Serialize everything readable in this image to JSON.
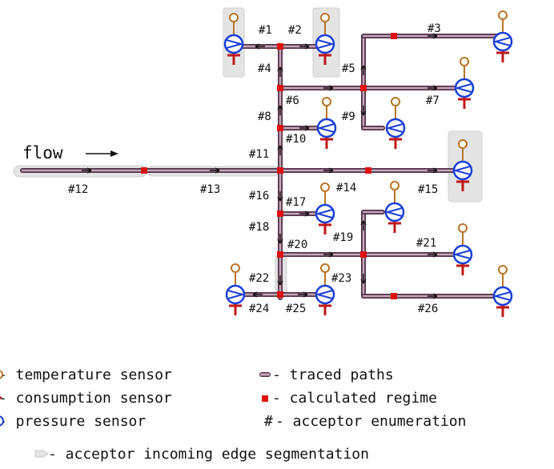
{
  "flow_label": "flow",
  "colors": {
    "pipe": "#a07a90",
    "pipe_core": "#c4a8b8",
    "pipe_edge": "#55304a",
    "regime": "#e01010",
    "pump": "#1a3fd8",
    "temp_sensor": "#b87426",
    "consumption": "#c01818",
    "segment": "#e4e4e4"
  },
  "acceptor_labels": {
    "n1": "#1",
    "n2": "#2",
    "n3": "#3",
    "n4": "#4",
    "n5": "#5",
    "n6": "#6",
    "n7": "#7",
    "n8": "#8",
    "n9": "#9",
    "n10": "#10",
    "n11": "#11",
    "n12": "#12",
    "n13": "#13",
    "n14": "#14",
    "n15": "#15",
    "n16": "#16",
    "n17": "#17",
    "n18": "#18",
    "n19": "#19",
    "n20": "#20",
    "n21": "#21",
    "n22": "#22",
    "n23": "#23",
    "n24": "#24",
    "n25": "#25",
    "n26": "#26"
  },
  "legend": {
    "temperature": "- temperature sensor",
    "consumption": "- consumption sensor",
    "pressure": "- pressure sensor",
    "traced": "- traced paths",
    "regime": "- calculated regime",
    "enumeration": "- acceptor enumeration",
    "enumeration_symbol": "#",
    "segmentation": "- acceptor incoming edge segmentation"
  }
}
